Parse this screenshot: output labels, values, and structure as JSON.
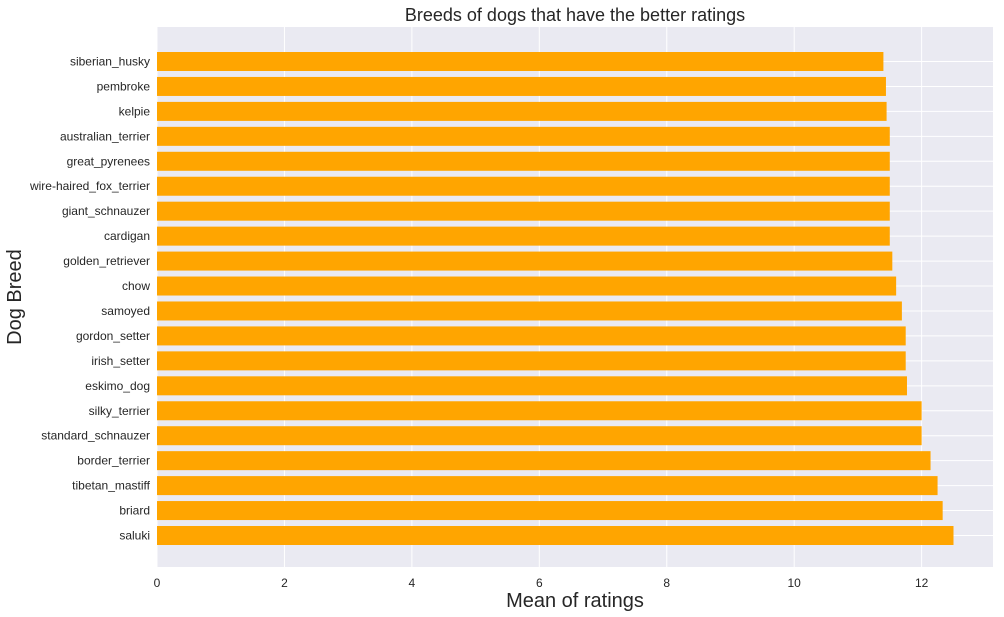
{
  "chart_data": {
    "type": "bar",
    "orientation": "horizontal",
    "title": "Breeds of dogs that have the better ratings",
    "xlabel": "Mean of ratings",
    "ylabel": "Dog Breed",
    "categories": [
      "saluki",
      "briard",
      "tibetan_mastiff",
      "border_terrier",
      "standard_schnauzer",
      "silky_terrier",
      "eskimo_dog",
      "irish_setter",
      "gordon_setter",
      "samoyed",
      "chow",
      "golden_retriever",
      "cardigan",
      "giant_schnauzer",
      "wire-haired_fox_terrier",
      "great_pyrenees",
      "australian_terrier",
      "kelpie",
      "pembroke",
      "siberian_husky"
    ],
    "values": [
      12.5,
      12.33,
      12.25,
      12.14,
      12.0,
      12.0,
      11.77,
      11.75,
      11.75,
      11.69,
      11.6,
      11.54,
      11.5,
      11.5,
      11.5,
      11.5,
      11.5,
      11.45,
      11.44,
      11.4
    ],
    "xlim": [
      0,
      13.12
    ],
    "xticks": [
      0,
      2,
      4,
      6,
      8,
      10,
      12
    ],
    "grid": true,
    "bar_color": "#ffa500",
    "background_color": "#eaeaf2",
    "grid_color": "#ffffff"
  }
}
